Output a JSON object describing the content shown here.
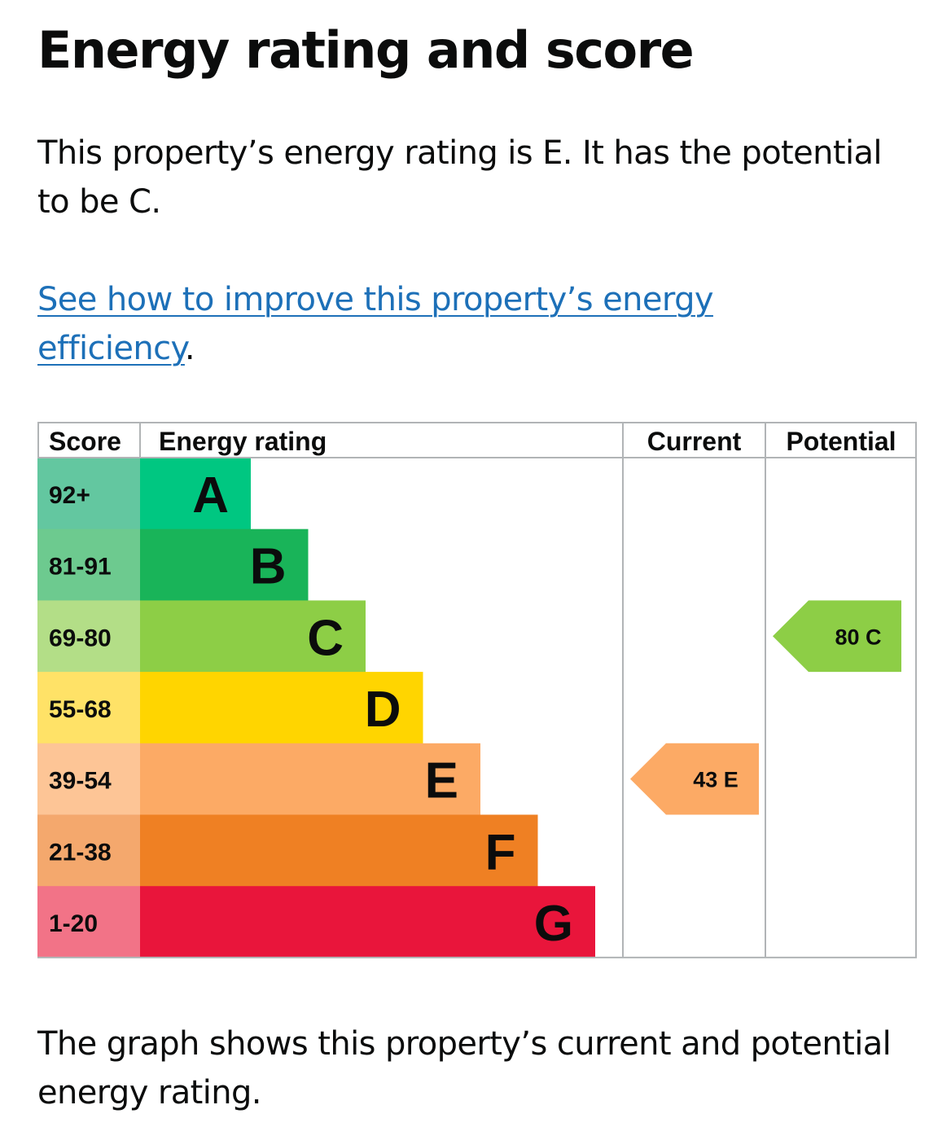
{
  "page": {
    "title": "Energy rating and score",
    "summary": "This property’s energy rating is E. It has the potential to be C.",
    "improve_link": "See how to improve this property’s energy efficiency",
    "improve_link_suffix": ".",
    "caption": "The graph shows this property’s current and potential energy rating."
  },
  "chart_data": {
    "type": "bar",
    "headers": {
      "score": "Score",
      "rating": "Energy rating",
      "current": "Current",
      "potential": "Potential"
    },
    "bands": [
      {
        "score": "92+",
        "letter": "A",
        "color": "#00c781",
        "score_color": "#63c7a0"
      },
      {
        "score": "81-91",
        "letter": "B",
        "color": "#19b459",
        "score_color": "#6dca8f"
      },
      {
        "score": "69-80",
        "letter": "C",
        "color": "#8dce46",
        "score_color": "#b3de87"
      },
      {
        "score": "55-68",
        "letter": "D",
        "color": "#ffd500",
        "score_color": "#ffe267"
      },
      {
        "score": "39-54",
        "letter": "E",
        "color": "#fcaa65",
        "score_color": "#fdc596"
      },
      {
        "score": "21-38",
        "letter": "F",
        "color": "#ef8023",
        "score_color": "#f4a86d"
      },
      {
        "score": "1-20",
        "letter": "G",
        "color": "#e9153b",
        "score_color": "#f27387"
      }
    ],
    "current": {
      "score": 43,
      "band": "E",
      "label": "43  E"
    },
    "potential": {
      "score": 80,
      "band": "C",
      "label": "80  C"
    }
  }
}
